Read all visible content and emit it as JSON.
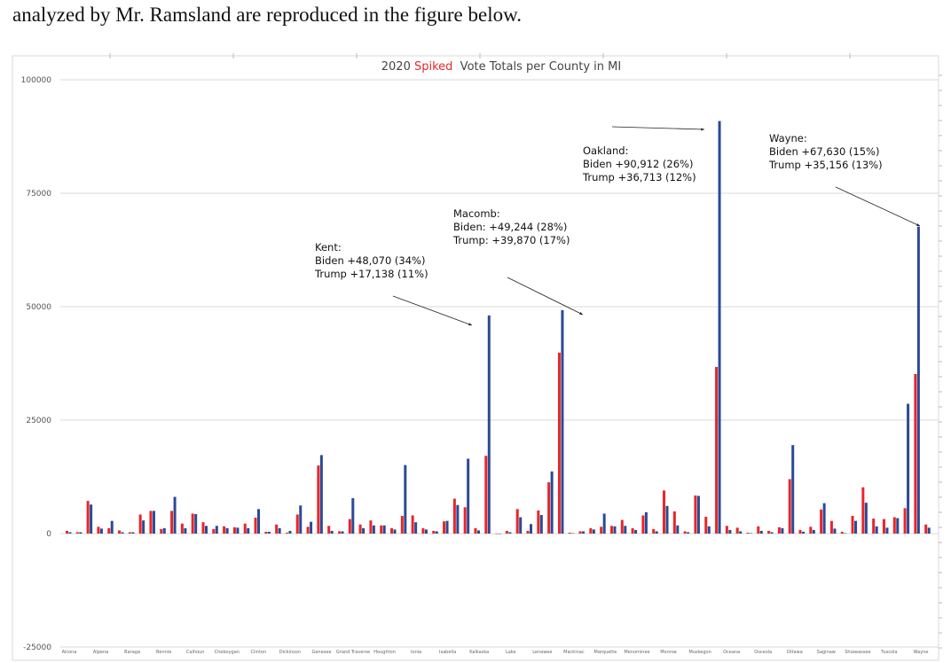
{
  "document": {
    "caption": "analyzed by Mr. Ramsland are reproduced in the figure below."
  },
  "chart_data": {
    "type": "bar",
    "title_parts": [
      {
        "text": "2020 ",
        "color": "#444444"
      },
      {
        "text": "Spiked",
        "color": "#e8262a"
      },
      {
        "text": "  Vote Totals per County in MI",
        "color": "#444444"
      }
    ],
    "xlabel": "",
    "ylabel": "",
    "ylim": [
      -25000,
      100000
    ],
    "yticks": [
      -25000,
      0,
      25000,
      50000,
      75000,
      100000
    ],
    "ytick_labels": [
      "-25000",
      "0",
      "25000",
      "50000",
      "75000",
      "100000"
    ],
    "grid": true,
    "legend": "none",
    "colors": {
      "red_series": "#e8262a",
      "blue_series": "#2b4a96"
    },
    "x_tick_labels": [
      "Alcona",
      "Alpena",
      "Baraga",
      "Bennie",
      "Calhoun",
      "Cheboygan",
      "Clinton",
      "Dickinson",
      "Genesee",
      "Grand Traverse",
      "Houghton",
      "Ionia",
      "Isabella",
      "Kalkaska",
      "Lake",
      "Lenawee",
      "Mackinac",
      "Marquette",
      "Menominee",
      "Monroe",
      "Muskegon",
      "Oceana",
      "Osceola",
      "Ottawa",
      "Saginaw",
      "Shiawassee",
      "Tuscola",
      "Wayne"
    ],
    "series": [
      {
        "name": "Red (Trump)",
        "values": [
          600,
          300,
          7200,
          1500,
          1200,
          700,
          300,
          4200,
          5000,
          1000,
          5000,
          2200,
          4400,
          2500,
          1000,
          1600,
          1400,
          2200,
          3500,
          400,
          2000,
          200,
          4200,
          1500,
          15000,
          1700,
          500,
          3200,
          2000,
          2900,
          1800,
          1200,
          3900,
          4000,
          1200,
          600,
          2700,
          7700,
          5800,
          1200,
          17138,
          0,
          600,
          5400,
          600,
          5100,
          11300,
          39870,
          200,
          500,
          1200,
          1500,
          1700,
          3000,
          1200,
          4000,
          1000,
          9500,
          4900,
          500,
          8400,
          3700,
          36713,
          1700,
          1300,
          200,
          1600,
          600,
          1400,
          12000,
          800,
          1500,
          5300,
          2800,
          400,
          3900,
          10200,
          3300,
          3200,
          3600,
          5600,
          35156,
          2000
        ],
        "note": "one value per county (83 counties), read from pixel heights"
      },
      {
        "name": "Blue (Biden)",
        "values": [
          300,
          300,
          6400,
          1100,
          2800,
          300,
          300,
          2900,
          5000,
          1200,
          8100,
          1200,
          4300,
          1700,
          1700,
          1200,
          1300,
          1200,
          5400,
          400,
          1200,
          600,
          6200,
          2600,
          17300,
          600,
          500,
          7800,
          1200,
          1800,
          1800,
          900,
          15100,
          2500,
          900,
          500,
          2800,
          6300,
          16500,
          700,
          48070,
          0,
          300,
          3600,
          2100,
          4100,
          13700,
          49244,
          100,
          500,
          900,
          4400,
          1600,
          1700,
          800,
          4700,
          500,
          6100,
          1800,
          300,
          8300,
          1600,
          90912,
          800,
          500,
          100,
          600,
          300,
          1200,
          19500,
          400,
          800,
          6700,
          1100,
          100,
          2800,
          6800,
          1600,
          1300,
          3400,
          28600,
          67630,
          1300
        ]
      }
    ],
    "annotations": [
      {
        "county": "Kent",
        "lines": [
          "Kent:",
          "Biden +48,070 (34%)",
          "Trump +17,138 (11%)"
        ]
      },
      {
        "county": "Macomb",
        "lines": [
          "Macomb:",
          "Biden: +49,244 (28%)",
          "Trump: +39,870 (17%)"
        ]
      },
      {
        "county": "Oakland",
        "lines": [
          "Oakland:",
          "Biden +90,912 (26%)",
          "Trump +36,713 (12%)"
        ]
      },
      {
        "county": "Wayne",
        "lines": [
          "Wayne:",
          "Biden +67,630 (15%)",
          "Trump +35,156 (13%)"
        ]
      }
    ]
  }
}
